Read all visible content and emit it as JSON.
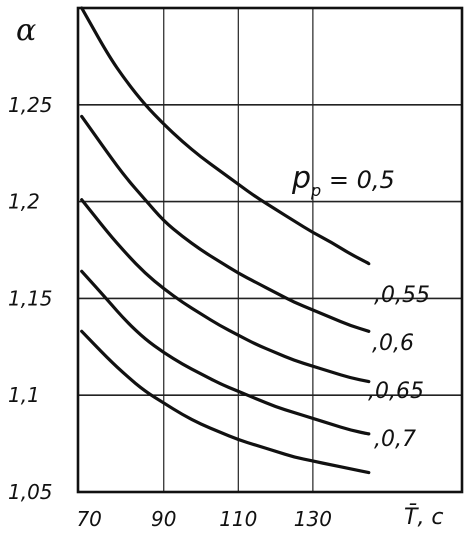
{
  "chart_data": {
    "type": "line",
    "ylabel": "α",
    "xlabel": "T̄, c",
    "xlim": [
      67,
      170
    ],
    "ylim": [
      1.05,
      1.3
    ],
    "x_ticks": [
      {
        "value": 70,
        "label": "70"
      },
      {
        "value": 90,
        "label": "90"
      },
      {
        "value": 110,
        "label": "110"
      },
      {
        "value": 130,
        "label": "130"
      }
    ],
    "y_ticks": [
      {
        "value": 1.25,
        "label": "1,25"
      },
      {
        "value": 1.2,
        "label": "1,2"
      },
      {
        "value": 1.15,
        "label": "1,15"
      },
      {
        "value": 1.1,
        "label": "1,1"
      },
      {
        "value": 1.05,
        "label": "1,05"
      }
    ],
    "grid": true,
    "series": [
      {
        "name": "p_p = 0,5",
        "label_main": "p",
        "label_sub": "p",
        "label_rest": " = 0,5",
        "x": [
          68,
          75,
          80,
          85,
          90,
          95,
          100,
          105,
          110,
          115,
          120,
          125,
          130,
          135,
          140,
          145
        ],
        "y": [
          1.3,
          1.276,
          1.262,
          1.25,
          1.24,
          1.231,
          1.223,
          1.216,
          1.209,
          1.202,
          1.196,
          1.19,
          1.184,
          1.179,
          1.173,
          1.168
        ]
      },
      {
        "name": ",0,55",
        "x": [
          68,
          75,
          80,
          85,
          90,
          95,
          100,
          105,
          110,
          115,
          120,
          125,
          130,
          135,
          140,
          145
        ],
        "y": [
          1.244,
          1.225,
          1.212,
          1.201,
          1.19,
          1.182,
          1.175,
          1.169,
          1.163,
          1.158,
          1.153,
          1.148,
          1.144,
          1.14,
          1.136,
          1.133
        ]
      },
      {
        "name": ",0,6",
        "x": [
          68,
          75,
          80,
          85,
          90,
          95,
          100,
          105,
          110,
          115,
          120,
          125,
          130,
          135,
          140,
          145
        ],
        "y": [
          1.201,
          1.184,
          1.173,
          1.163,
          1.155,
          1.148,
          1.142,
          1.136,
          1.131,
          1.126,
          1.122,
          1.118,
          1.115,
          1.112,
          1.109,
          1.107
        ]
      },
      {
        "name": ",0,65",
        "x": [
          68,
          75,
          80,
          85,
          90,
          95,
          100,
          105,
          110,
          115,
          120,
          125,
          130,
          135,
          140,
          145
        ],
        "y": [
          1.164,
          1.149,
          1.138,
          1.129,
          1.122,
          1.116,
          1.111,
          1.106,
          1.102,
          1.098,
          1.094,
          1.091,
          1.088,
          1.085,
          1.082,
          1.08
        ]
      },
      {
        "name": ",0,7",
        "x": [
          68,
          75,
          80,
          85,
          90,
          95,
          100,
          105,
          110,
          115,
          120,
          125,
          130,
          135,
          140,
          145
        ],
        "y": [
          1.133,
          1.119,
          1.11,
          1.102,
          1.096,
          1.09,
          1.085,
          1.081,
          1.077,
          1.074,
          1.071,
          1.068,
          1.066,
          1.064,
          1.062,
          1.06
        ]
      }
    ]
  }
}
